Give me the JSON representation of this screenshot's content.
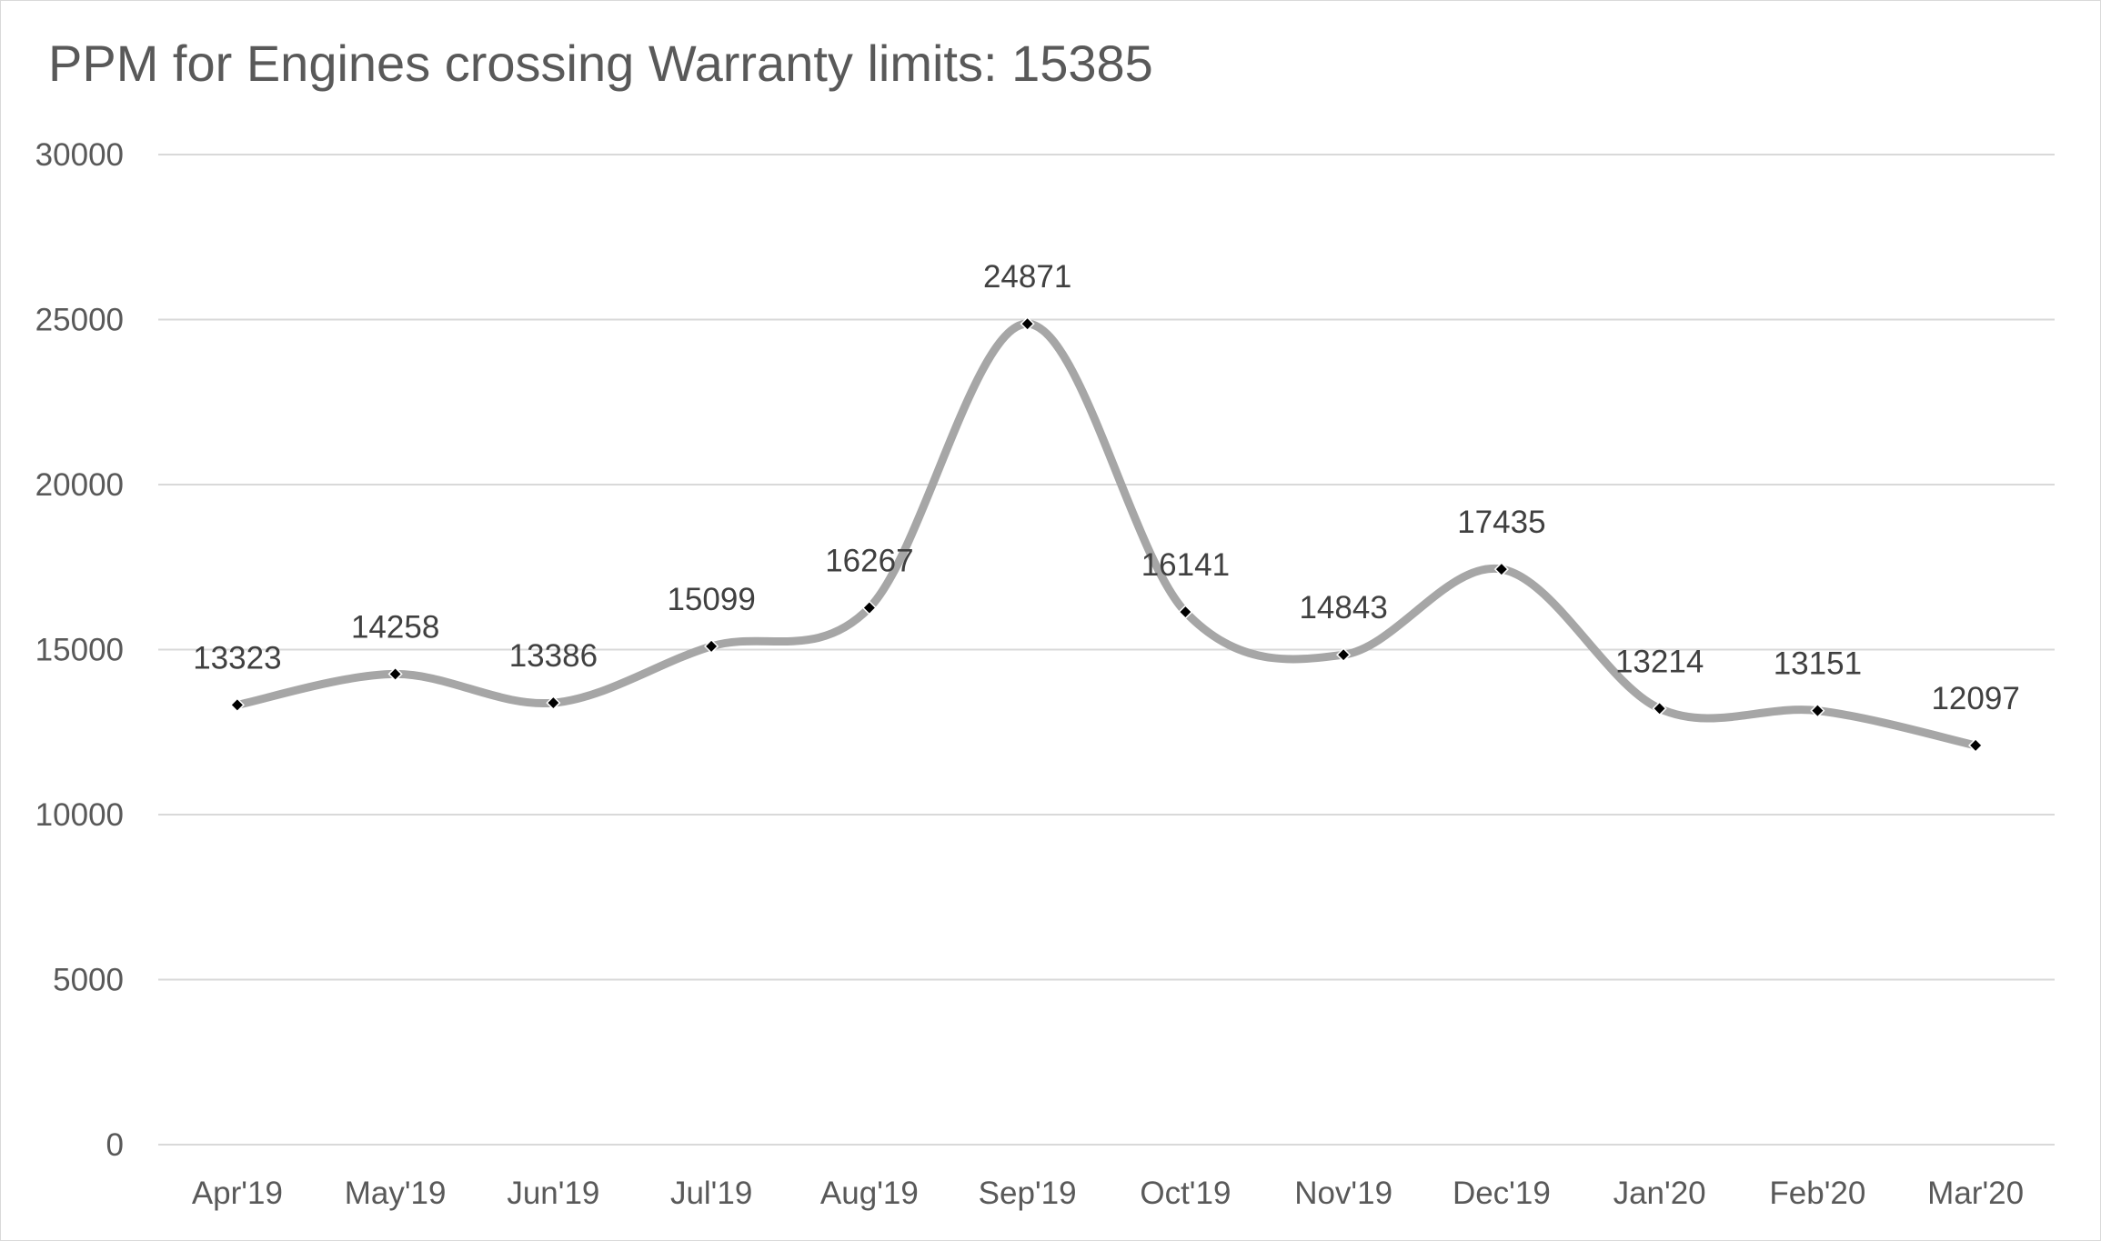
{
  "chart_data": {
    "type": "line",
    "title": "PPM for Engines crossing Warranty limits: 15385",
    "xlabel": "",
    "ylabel": "",
    "categories": [
      "Apr'19",
      "May'19",
      "Jun'19",
      "Jul'19",
      "Aug'19",
      "Sep'19",
      "Oct'19",
      "Nov'19",
      "Dec'19",
      "Jan'20",
      "Feb'20",
      "Mar'20"
    ],
    "series": [
      {
        "name": "PPM",
        "values": [
          13323,
          14258,
          13386,
          15099,
          16267,
          24871,
          16141,
          14843,
          17435,
          13214,
          13151,
          12097
        ],
        "data_labels": [
          "13323",
          "14258",
          "13386",
          "15099",
          "16267",
          "24871",
          "16141",
          "14843",
          "17435",
          "13214",
          "13151",
          "12097"
        ]
      }
    ],
    "y_ticks": [
      0,
      5000,
      10000,
      15000,
      20000,
      25000,
      30000
    ],
    "y_tick_labels": [
      "0",
      "5000",
      "10000",
      "15000",
      "20000",
      "25000",
      "30000"
    ],
    "ylim": [
      0,
      30000
    ],
    "grid": true,
    "smooth": true,
    "legend": "none"
  },
  "colors": {
    "line": "#a6a6a6",
    "marker": "#000000",
    "grid": "#d9d9d9",
    "axis_text": "#595959",
    "label_text": "#404040"
  }
}
